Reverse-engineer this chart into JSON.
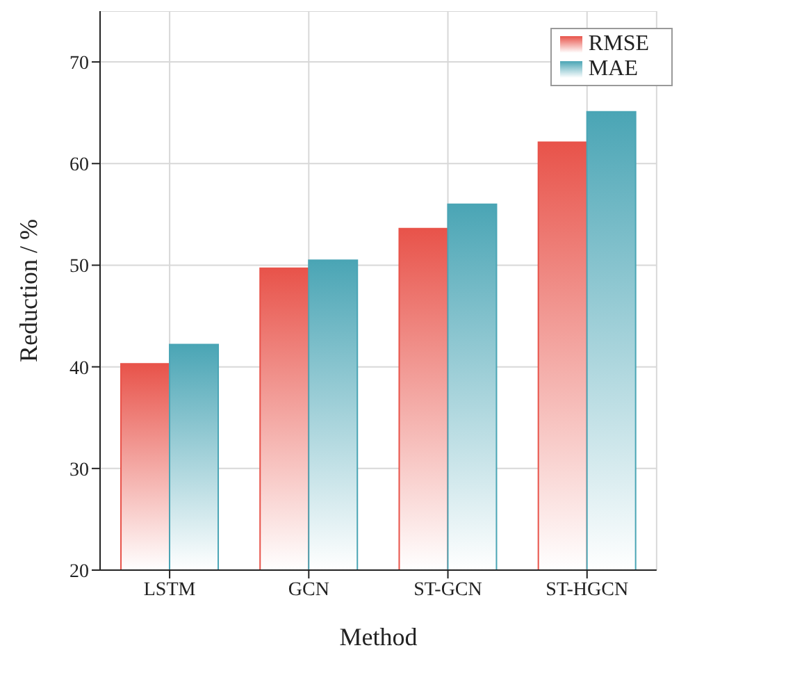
{
  "chart_data": {
    "type": "bar",
    "xlabel": "Method",
    "ylabel": "Reduction / %",
    "categories": [
      "LSTM",
      "GCN",
      "ST-GCN",
      "ST-HGCN"
    ],
    "series": [
      {
        "name": "RMSE",
        "color": "#e8534a",
        "values": [
          40.3,
          49.7,
          53.6,
          62.1
        ]
      },
      {
        "name": "MAE",
        "color": "#4aa5b5",
        "values": [
          42.2,
          50.5,
          56.0,
          65.1
        ]
      }
    ],
    "ylim": [
      20,
      75
    ],
    "yticks": [
      20,
      30,
      40,
      50,
      60,
      70
    ],
    "grid": true,
    "legend": "top right"
  }
}
